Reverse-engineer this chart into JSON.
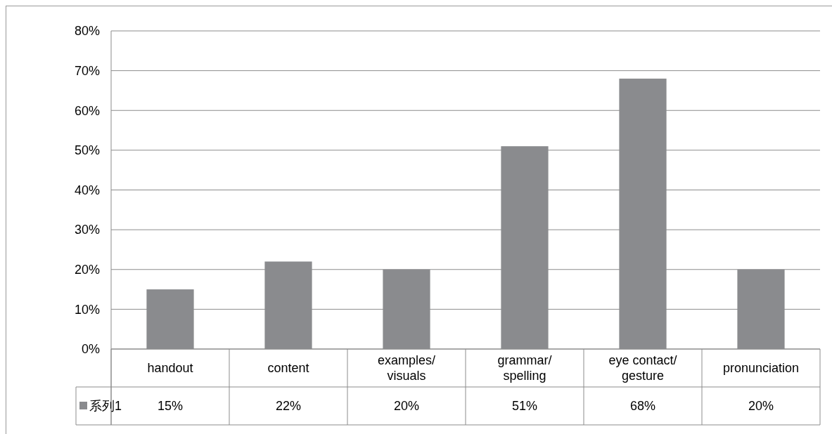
{
  "chart_data": {
    "type": "bar",
    "categories": [
      "handout",
      "content",
      "examples/visuals",
      "grammar/spelling",
      "eye contact/gesture",
      "pronunciation"
    ],
    "series": [
      {
        "name": "系列1",
        "color": "#8a8b8e",
        "values": [
          15,
          22,
          20,
          51,
          68,
          20
        ],
        "value_labels": [
          "15%",
          "22%",
          "20%",
          "51%",
          "68%",
          "20%"
        ]
      }
    ],
    "ylim": [
      0,
      80
    ],
    "yticks": [
      {
        "value": 0,
        "label": "0%"
      },
      {
        "value": 10,
        "label": "10%"
      },
      {
        "value": 20,
        "label": "20%"
      },
      {
        "value": 30,
        "label": "30%"
      },
      {
        "value": 40,
        "label": "40%"
      },
      {
        "value": 50,
        "label": "50%"
      },
      {
        "value": 60,
        "label": "60%"
      },
      {
        "value": 70,
        "label": "70%"
      },
      {
        "value": 80,
        "label": "80%"
      }
    ],
    "grid": "y",
    "legend": "bottom"
  }
}
